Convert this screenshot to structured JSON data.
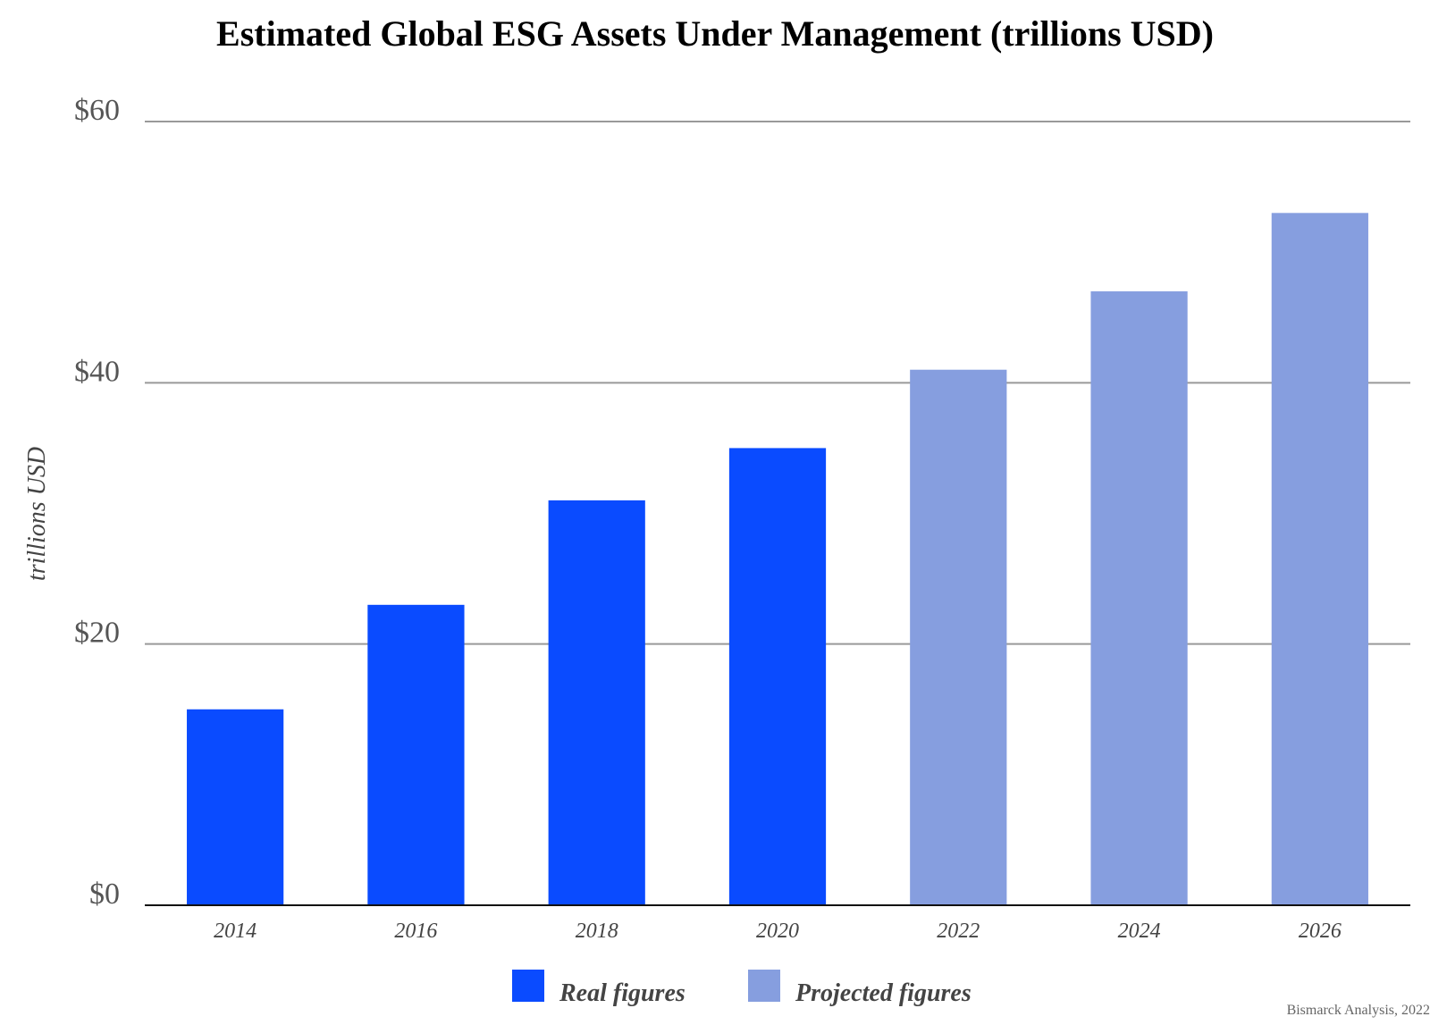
{
  "chart_data": {
    "type": "bar",
    "title": "Estimated Global ESG Assets Under Management (trillions USD)",
    "ylabel": "trillions USD",
    "xlabel": "",
    "categories": [
      "2014",
      "2016",
      "2018",
      "2020",
      "2022",
      "2024",
      "2026"
    ],
    "values": [
      15,
      23,
      31,
      35,
      41,
      47,
      53
    ],
    "bar_series": [
      "Real figures",
      "Real figures",
      "Real figures",
      "Real figures",
      "Projected figures",
      "Projected figures",
      "Projected figures"
    ],
    "series": [
      {
        "name": "Real figures",
        "color": "#0a4bff"
      },
      {
        "name": "Projected figures",
        "color": "#869edf"
      }
    ],
    "ylim": [
      0,
      60
    ],
    "yticks": [
      0,
      20,
      40,
      60
    ],
    "ytick_labels": [
      "$0",
      "$20",
      "$40",
      "$60"
    ],
    "grid": true,
    "legend_position": "bottom",
    "source": "Bismarck Analysis, 2022"
  }
}
